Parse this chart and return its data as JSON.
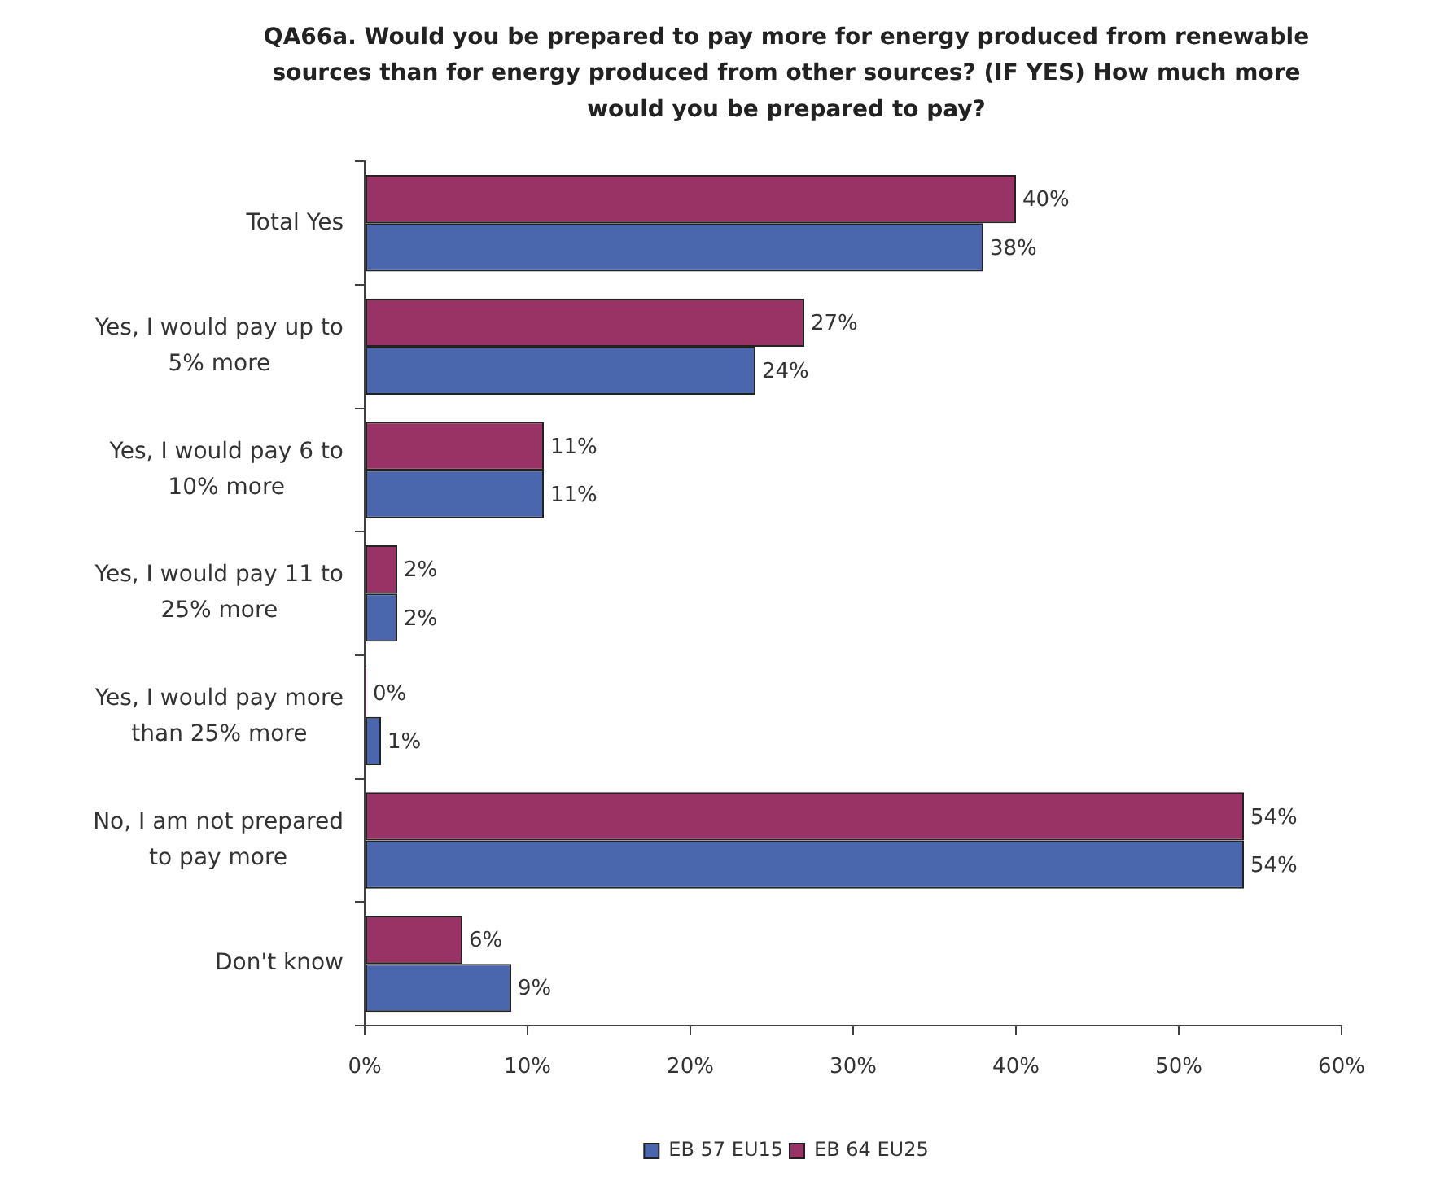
{
  "chart_data": {
    "type": "bar",
    "orientation": "horizontal",
    "title": "QA66a. Would you be prepared to pay more for energy produced from renewable sources than for energy produced from other sources? (IF YES) How much more would you be prepared to pay?",
    "categories": [
      "Total Yes",
      "Yes, I would pay up to 5% more",
      "Yes, I would pay 6 to 10% more",
      "Yes, I would pay 11 to 25% more",
      "Yes, I would pay more than 25% more",
      "No, I am not prepared to pay more",
      "Don't know"
    ],
    "series": [
      {
        "name": "EB 57 EU15",
        "color": "#4a66ac",
        "values": [
          38,
          24,
          11,
          2,
          1,
          54,
          9
        ],
        "value_labels": [
          "38%",
          "24%",
          "11%",
          "2%",
          "1%",
          "54%",
          "9%"
        ]
      },
      {
        "name": "EB 64 EU25",
        "color": "#993366",
        "values": [
          40,
          27,
          11,
          2,
          0,
          54,
          6
        ],
        "value_labels": [
          "40%",
          "27%",
          "11%",
          "2%",
          "0%",
          "54%",
          "6%"
        ]
      }
    ],
    "xlim": [
      0,
      60
    ],
    "xticks": [
      {
        "value": 0,
        "label": "0%"
      },
      {
        "value": 10,
        "label": "10%"
      },
      {
        "value": 20,
        "label": "20%"
      },
      {
        "value": 30,
        "label": "30%"
      },
      {
        "value": 40,
        "label": "40%"
      },
      {
        "value": 50,
        "label": "50%"
      },
      {
        "value": 60,
        "label": "60%"
      }
    ],
    "grid": false,
    "legend": "bottom"
  }
}
